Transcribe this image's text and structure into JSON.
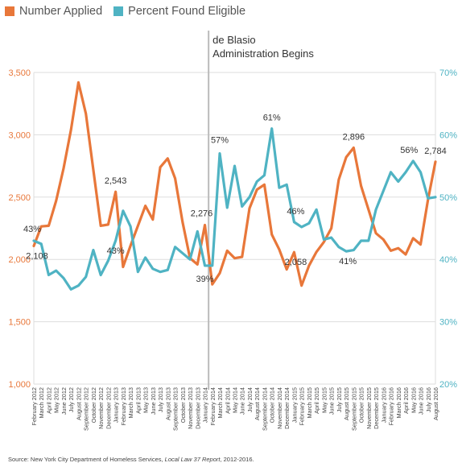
{
  "legend": {
    "applied_label": "Number Applied",
    "eligible_label": "Percent Found Eligible"
  },
  "colors": {
    "applied": "#e8773a",
    "eligible": "#4fb3c3",
    "divider": "#bbbbbb",
    "grid": "#dddddd"
  },
  "annotation": {
    "line1": "de Blasio",
    "line2": "Administration Begins"
  },
  "source": {
    "prefix": "Source: New York City Department of Homeless Services, ",
    "title": "Local Law 37 Report",
    "suffix": ", 2012-2016."
  },
  "chart_data": {
    "type": "line",
    "x": [
      "February 2012",
      "March 2012",
      "April 2012",
      "May 2012",
      "June 2012",
      "July 2012",
      "August 2012",
      "September 2012",
      "October 2012",
      "November 2012",
      "December 2012",
      "January 2013",
      "February 2013",
      "March 2013",
      "April 2013",
      "May 2013",
      "June 2013",
      "July 2013",
      "August 2013",
      "September 2013",
      "October 2013",
      "November 2013",
      "December 2013",
      "January 2014",
      "February 2014",
      "March 2014",
      "April 2014",
      "May 2014",
      "June 2014",
      "July 2014",
      "August 2014",
      "September 2014",
      "October 2014",
      "November 2014",
      "December 2014",
      "January 2015",
      "February 2015",
      "March 2015",
      "April 2015",
      "May 2015",
      "June 2015",
      "July 2015",
      "August 2015",
      "September 2015",
      "October 2015",
      "November 2015",
      "December 2015",
      "January 2016",
      "February 2016",
      "March 2016",
      "April 2016",
      "May 2016",
      "June 2016",
      "July 2016",
      "August 2016"
    ],
    "series": [
      {
        "name": "Number Applied",
        "axis": "left",
        "values": [
          2108,
          2265,
          2270,
          2470,
          2730,
          3040,
          3420,
          3170,
          2720,
          2270,
          2280,
          2543,
          1940,
          2110,
          2270,
          2430,
          2320,
          2740,
          2810,
          2650,
          2300,
          2010,
          1960,
          2276,
          1800,
          1890,
          2070,
          2010,
          2020,
          2410,
          2560,
          2600,
          2200,
          2080,
          1920,
          2058,
          1790,
          1950,
          2060,
          2140,
          2250,
          2640,
          2820,
          2896,
          2590,
          2400,
          2210,
          2160,
          2070,
          2090,
          2040,
          2170,
          2120,
          2480,
          2784
        ]
      },
      {
        "name": "Percent Found Eligible",
        "axis": "right",
        "values": [
          43,
          42.5,
          37.5,
          38.2,
          37,
          35.2,
          35.8,
          37.2,
          41.5,
          37.5,
          39.8,
          43,
          47.8,
          45.3,
          38,
          40.3,
          38.5,
          38,
          38.3,
          42,
          41,
          40,
          44.5,
          39,
          39,
          57,
          48.3,
          55,
          48.5,
          50,
          52.5,
          53.5,
          61,
          51.5,
          52,
          46,
          45.2,
          45.8,
          48,
          43.2,
          43.5,
          42,
          41.3,
          41.5,
          43,
          43,
          48,
          51,
          54,
          52.5,
          54,
          55.8,
          54,
          49.8,
          50
        ]
      }
    ],
    "point_labels": [
      {
        "series": 0,
        "index": 0,
        "text": "2,108"
      },
      {
        "series": 0,
        "index": 11,
        "text": "2,543"
      },
      {
        "series": 0,
        "index": 23,
        "text": "2,276"
      },
      {
        "series": 0,
        "index": 35,
        "text": "2,058"
      },
      {
        "series": 0,
        "index": 43,
        "text": "2,896"
      },
      {
        "series": 0,
        "index": 54,
        "text": "2,784"
      },
      {
        "series": 1,
        "index": 0,
        "text": "43%"
      },
      {
        "series": 1,
        "index": 11,
        "text": "43%"
      },
      {
        "series": 1,
        "index": 23,
        "text": "39%"
      },
      {
        "series": 1,
        "index": 25,
        "text": "57%"
      },
      {
        "series": 1,
        "index": 32,
        "text": "61%"
      },
      {
        "series": 1,
        "index": 35,
        "text": "46%"
      },
      {
        "series": 1,
        "index": 42,
        "text": "41%"
      },
      {
        "series": 1,
        "index": 51,
        "text": "56%"
      }
    ],
    "y_left": {
      "ticks": [
        "1,000",
        "1,500",
        "2,000",
        "2,500",
        "3,000",
        "3,500"
      ],
      "ylim": [
        1000,
        3500
      ]
    },
    "y_right": {
      "ticks": [
        "20%",
        "30%",
        "40%",
        "50%",
        "60%",
        "70%"
      ],
      "ylim": [
        20,
        70
      ]
    },
    "divider_after": "January 2014",
    "grid": true
  }
}
